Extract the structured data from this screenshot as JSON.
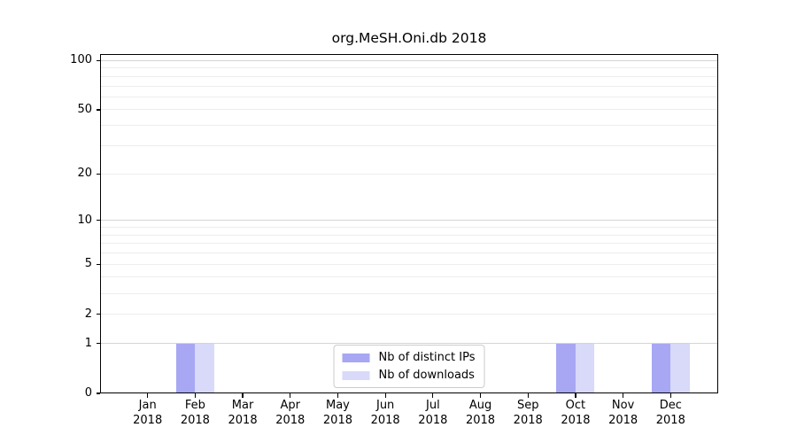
{
  "chart_data": {
    "type": "bar",
    "title": "org.MeSH.Oni.db 2018",
    "categories": [
      "Jan 2018",
      "Feb 2018",
      "Mar 2018",
      "Apr 2018",
      "May 2018",
      "Jun 2018",
      "Jul 2018",
      "Aug 2018",
      "Sep 2018",
      "Oct 2018",
      "Nov 2018",
      "Dec 2018"
    ],
    "series": [
      {
        "name": "Nb of distinct IPs",
        "color": "#a7a7f3",
        "values": [
          0,
          1,
          0,
          0,
          0,
          0,
          0,
          0,
          0,
          1,
          0,
          1
        ]
      },
      {
        "name": "Nb of downloads",
        "color": "#d9d9f9",
        "values": [
          0,
          1,
          0,
          0,
          0,
          0,
          0,
          0,
          0,
          1,
          0,
          1
        ]
      }
    ],
    "xlabel": "",
    "ylabel": "",
    "y_scale": "log1p",
    "y_ticks": [
      0,
      1,
      2,
      5,
      10,
      20,
      50,
      100
    ],
    "y_major_gridlines": [
      1,
      10,
      100
    ],
    "y_minor_gridlines": [
      2,
      3,
      4,
      5,
      6,
      7,
      8,
      9,
      20,
      30,
      40,
      50,
      60,
      70,
      80,
      90
    ],
    "ylim": [
      0,
      111
    ],
    "grid": "horizontal",
    "legend_position": "lower center",
    "colors": {
      "major_grid": "#d4d4d4",
      "minor_grid": "#ededed",
      "spine": "#000000",
      "legend_border": "#cccccc",
      "background": "#ffffff"
    }
  }
}
